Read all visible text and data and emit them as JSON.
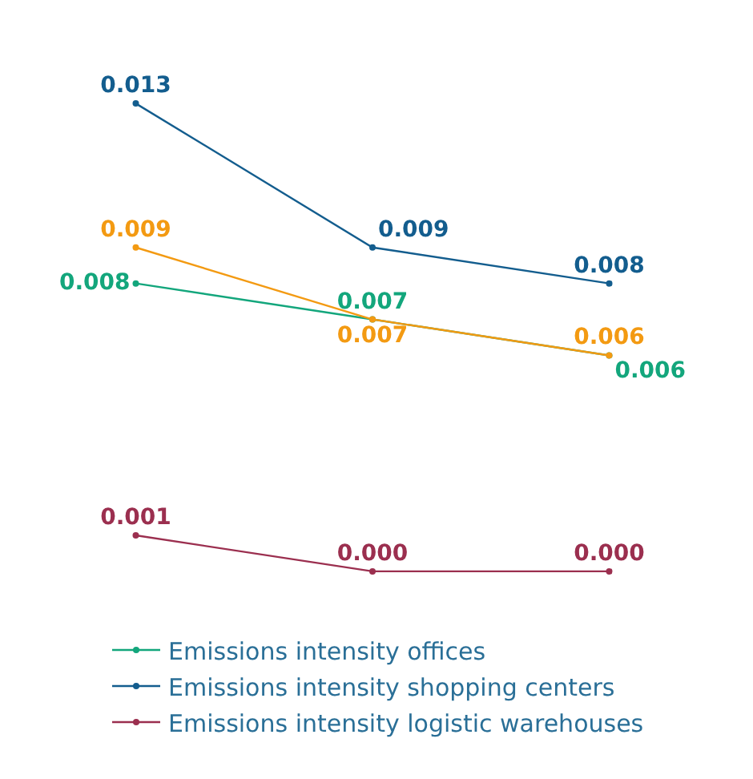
{
  "chart_data": {
    "type": "line",
    "categories": [
      null,
      null,
      null
    ],
    "series": [
      {
        "name": "Emissions intensity offices",
        "color": "#13a67c",
        "values": [
          0.008,
          0.007,
          0.006
        ],
        "value_labels": [
          "0.008",
          "0.007",
          "0.006"
        ]
      },
      {
        "name": "Emissions intensity shopping centers",
        "color": "#135d8e",
        "values": [
          0.013,
          0.009,
          0.008
        ],
        "value_labels": [
          "0.013",
          "0.009",
          "0.008"
        ]
      },
      {
        "color": "#f39a12",
        "values": [
          0.009,
          0.007,
          0.006
        ],
        "value_labels": [
          "0.009",
          "0.007",
          "0.006"
        ]
      },
      {
        "name": "Emissions intensity logistic warehouses",
        "color": "#9b2f4f",
        "values": [
          0.001,
          0.0,
          0.0
        ],
        "value_labels": [
          "0.001",
          "0.000",
          "0.000"
        ]
      }
    ],
    "marker": "circle",
    "line_style": "solid",
    "legend": "bottom",
    "tick_labels": false
  }
}
